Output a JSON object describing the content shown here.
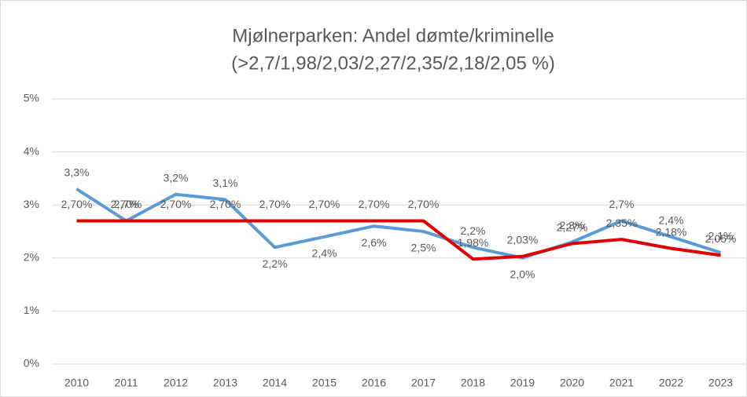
{
  "chart_data": {
    "type": "line",
    "title": "Mjølnerparken: Andel dømte/kriminelle",
    "subtitle": "(>2,7/1,98/2,03/2,27/2,35/2,18/2,05 %)",
    "categories": [
      "2010",
      "2011",
      "2012",
      "2013",
      "2014",
      "2015",
      "2016",
      "2017",
      "2018",
      "2019",
      "2020",
      "2021",
      "2022",
      "2023"
    ],
    "series": [
      {
        "color": "#5b9bd5",
        "values": [
          3.3,
          2.7,
          3.2,
          3.1,
          2.2,
          2.4,
          2.6,
          2.5,
          2.2,
          2.0,
          2.3,
          2.7,
          2.4,
          2.1
        ],
        "value_labels": [
          "3,3%",
          "2,7%",
          "3,2%",
          "3,1%",
          "2,2%",
          "2,4%",
          "2,6%",
          "2,5%",
          "2,2%",
          "2,0%",
          "2,3%",
          "2,7%",
          "2,4%",
          "2,1%"
        ]
      },
      {
        "color": "#e00000",
        "values": [
          2.7,
          2.7,
          2.7,
          2.7,
          2.7,
          2.7,
          2.7,
          2.7,
          1.98,
          2.03,
          2.27,
          2.35,
          2.18,
          2.05
        ],
        "value_labels": [
          "2,70%",
          "2,70%",
          "2,70%",
          "2,70%",
          "2,70%",
          "2,70%",
          "2,70%",
          "2,70%",
          "1,98%",
          "2,03%",
          "2,27%",
          "2,35%",
          "2,18%",
          "2,05%"
        ]
      }
    ],
    "ylim": [
      0,
      5
    ],
    "yticks": [
      {
        "value": 0,
        "label": "0%"
      },
      {
        "value": 1,
        "label": "1%"
      },
      {
        "value": 2,
        "label": "2%"
      },
      {
        "value": 3,
        "label": "3%"
      },
      {
        "value": 4,
        "label": "4%"
      },
      {
        "value": 5,
        "label": "5%"
      }
    ],
    "grid": true
  }
}
